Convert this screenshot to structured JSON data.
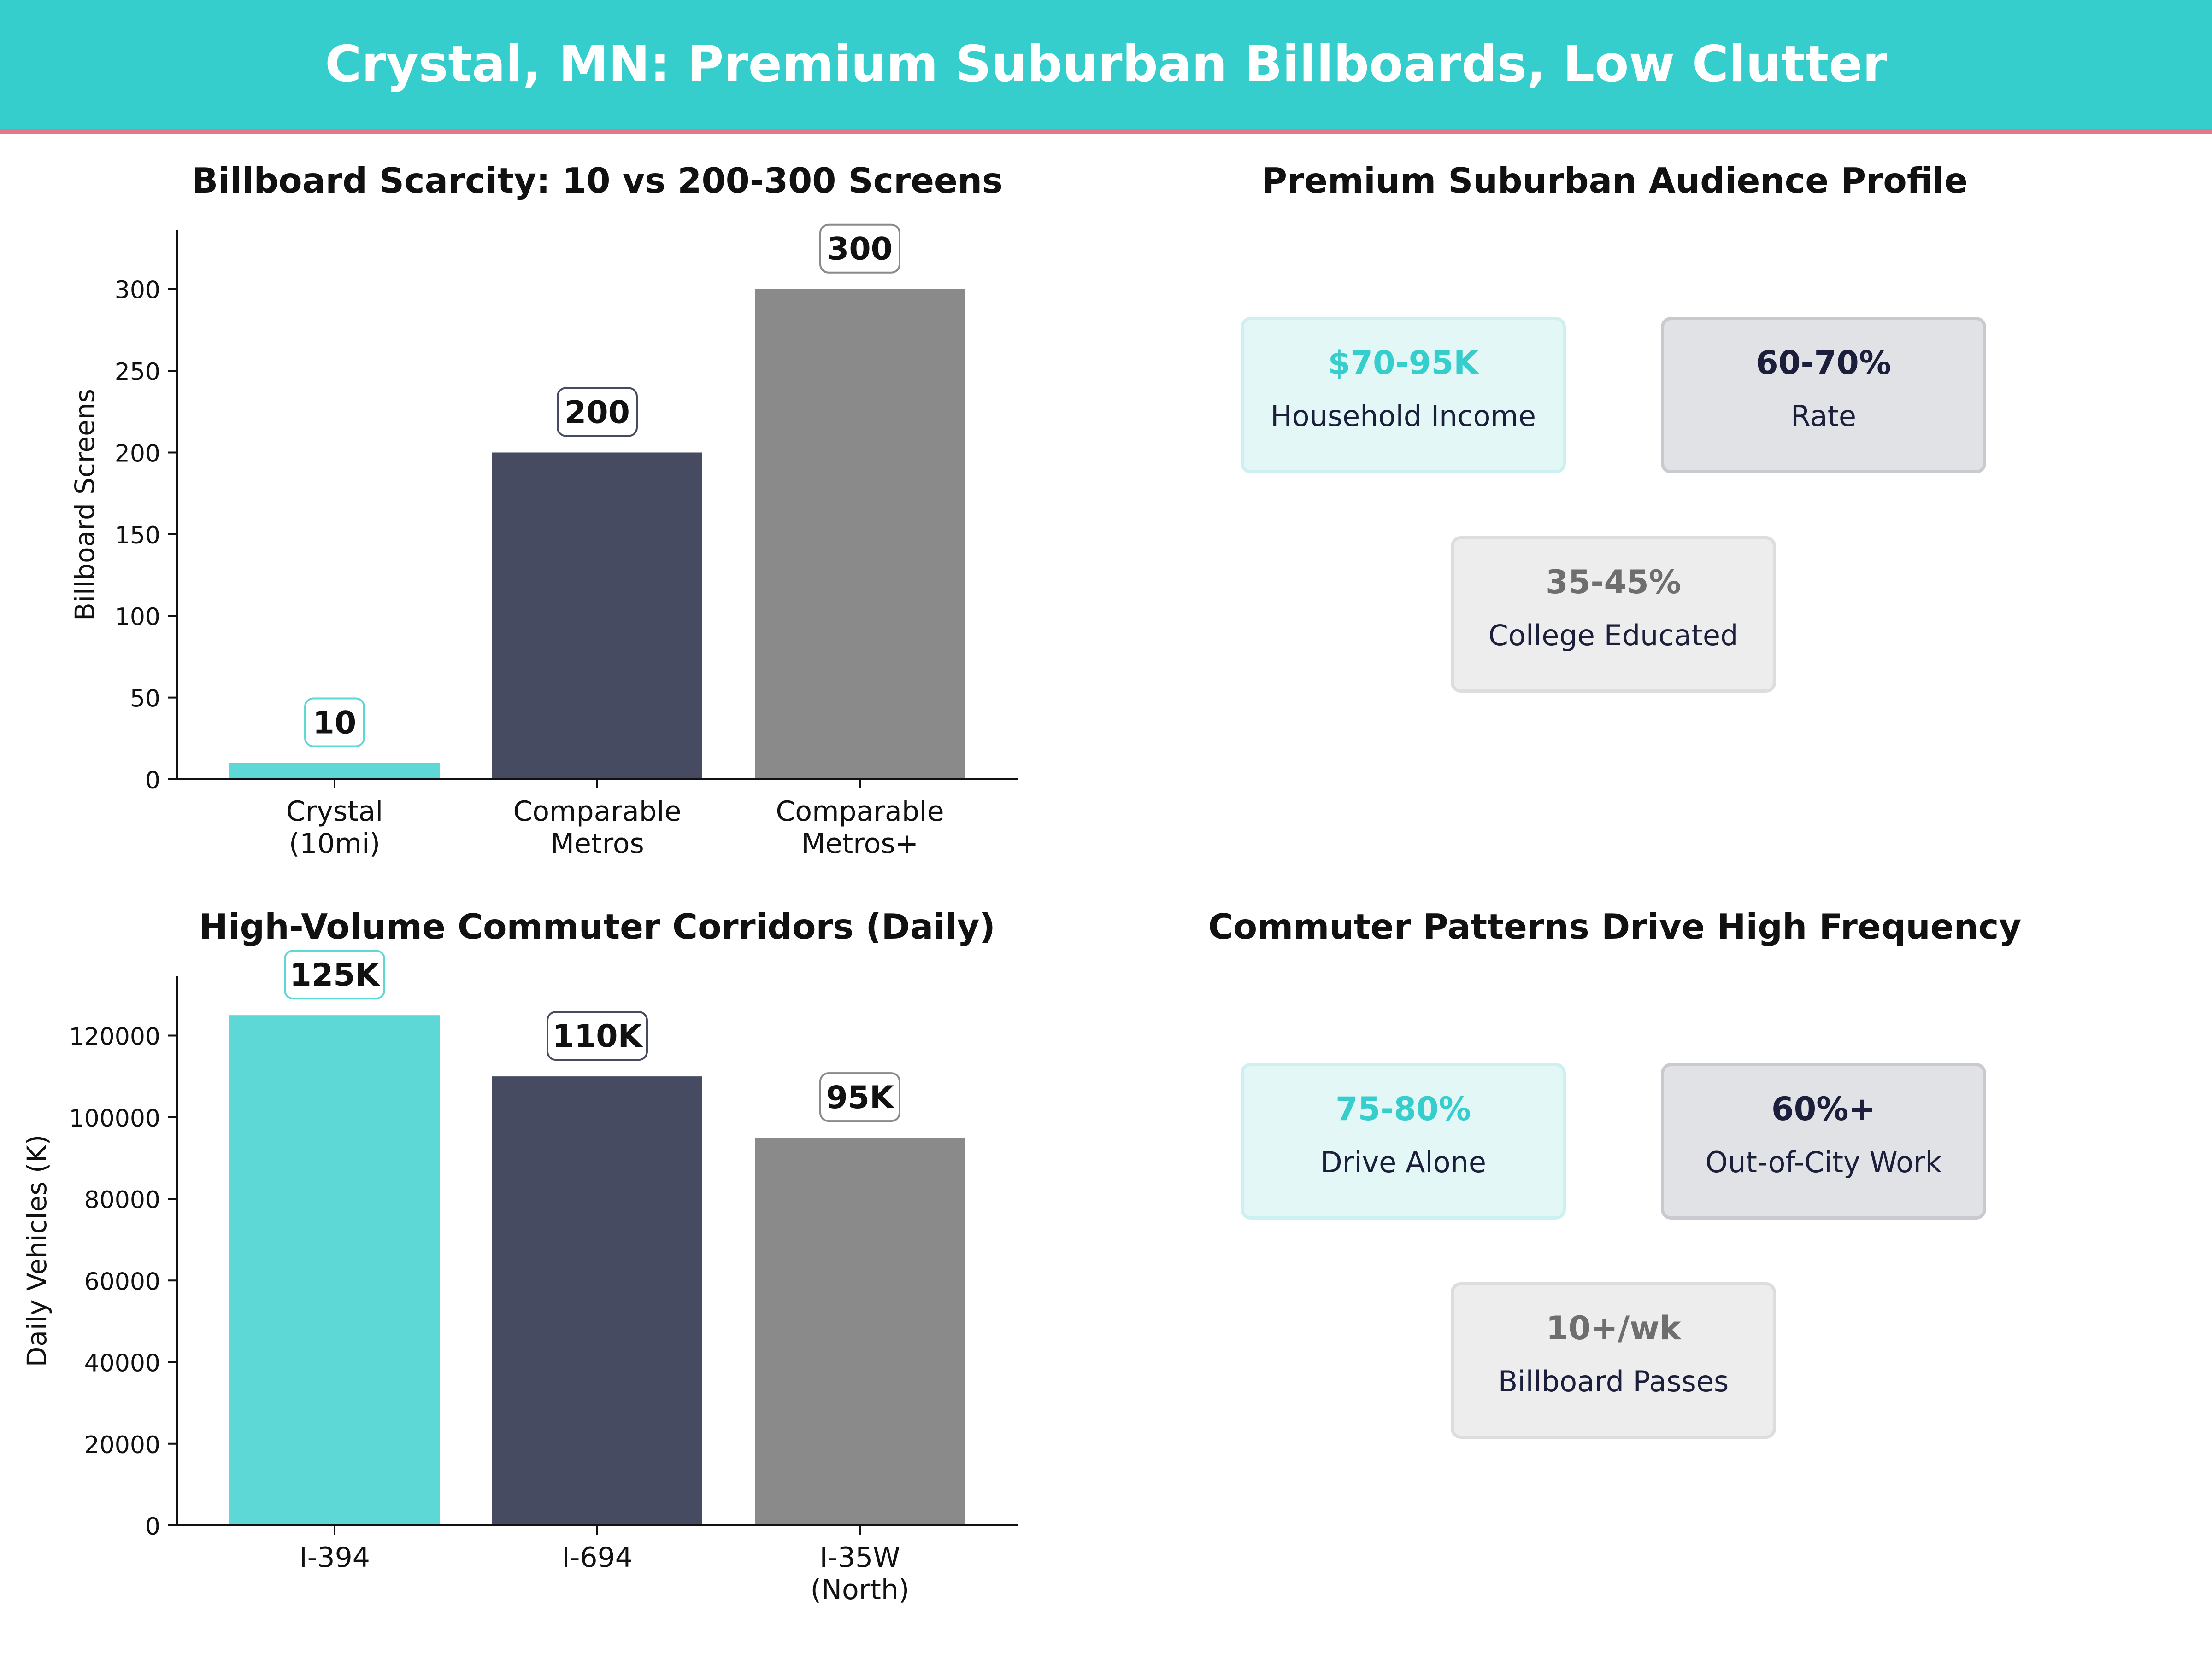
{
  "banner": {
    "title": "Crystal, MN: Premium Suburban Billboards, Low Clutter"
  },
  "colors": {
    "teal": "#36CDCD",
    "navy": "#1B1F3B",
    "gray": "#6E6E6E",
    "accent_line": "#E8768A"
  },
  "chart_data": [
    {
      "type": "bar",
      "title": "Billboard Scarcity: 10 vs 200-300 Screens",
      "xlabel": "",
      "ylabel": "Billboard Screens",
      "categories": [
        "Crystal\n(10mi)",
        "Comparable\nMetros",
        "Comparable\nMetros+"
      ],
      "values": [
        10,
        200,
        300
      ],
      "data_labels": [
        "10",
        "200",
        "300"
      ],
      "bar_colors": [
        "#5ED8D6",
        "#464B61",
        "#8A8A8A"
      ],
      "label_border_colors": [
        "#5ED8D6",
        "#464B61",
        "#8A8A8A"
      ],
      "ylim": [
        0,
        336
      ],
      "yticks": [
        0,
        50,
        100,
        150,
        200,
        250,
        300
      ],
      "grid": false,
      "legend": "none"
    },
    {
      "type": "bar",
      "title": "High-Volume Commuter Corridors (Daily)",
      "xlabel": "",
      "ylabel": "Daily Vehicles (K)",
      "categories": [
        "I-394",
        "I-694",
        "I-35W\n(North)"
      ],
      "values": [
        125000,
        110000,
        95000
      ],
      "data_labels": [
        "125K",
        "110K",
        "95K"
      ],
      "bar_colors": [
        "#5ED8D6",
        "#464B61",
        "#8A8A8A"
      ],
      "label_border_colors": [
        "#5ED8D6",
        "#464B61",
        "#8A8A8A"
      ],
      "ylim": [
        0,
        134500
      ],
      "yticks": [
        0,
        20000,
        40000,
        60000,
        80000,
        100000,
        120000
      ],
      "grid": false,
      "legend": "none"
    }
  ],
  "audience": {
    "title": "Premium Suburban Audience Profile",
    "cards": [
      {
        "value": "$70-95K",
        "label": "Household Income"
      },
      {
        "value": "60-70%",
        "label": "Rate"
      },
      {
        "value": "35-45%",
        "label": "College Educated"
      }
    ]
  },
  "commuter": {
    "title": "Commuter Patterns Drive High Frequency",
    "cards": [
      {
        "value": "75-80%",
        "label": "Drive Alone"
      },
      {
        "value": "60%+",
        "label": "Out-of-City Work"
      },
      {
        "value": "10+/wk",
        "label": "Billboard Passes"
      }
    ]
  }
}
